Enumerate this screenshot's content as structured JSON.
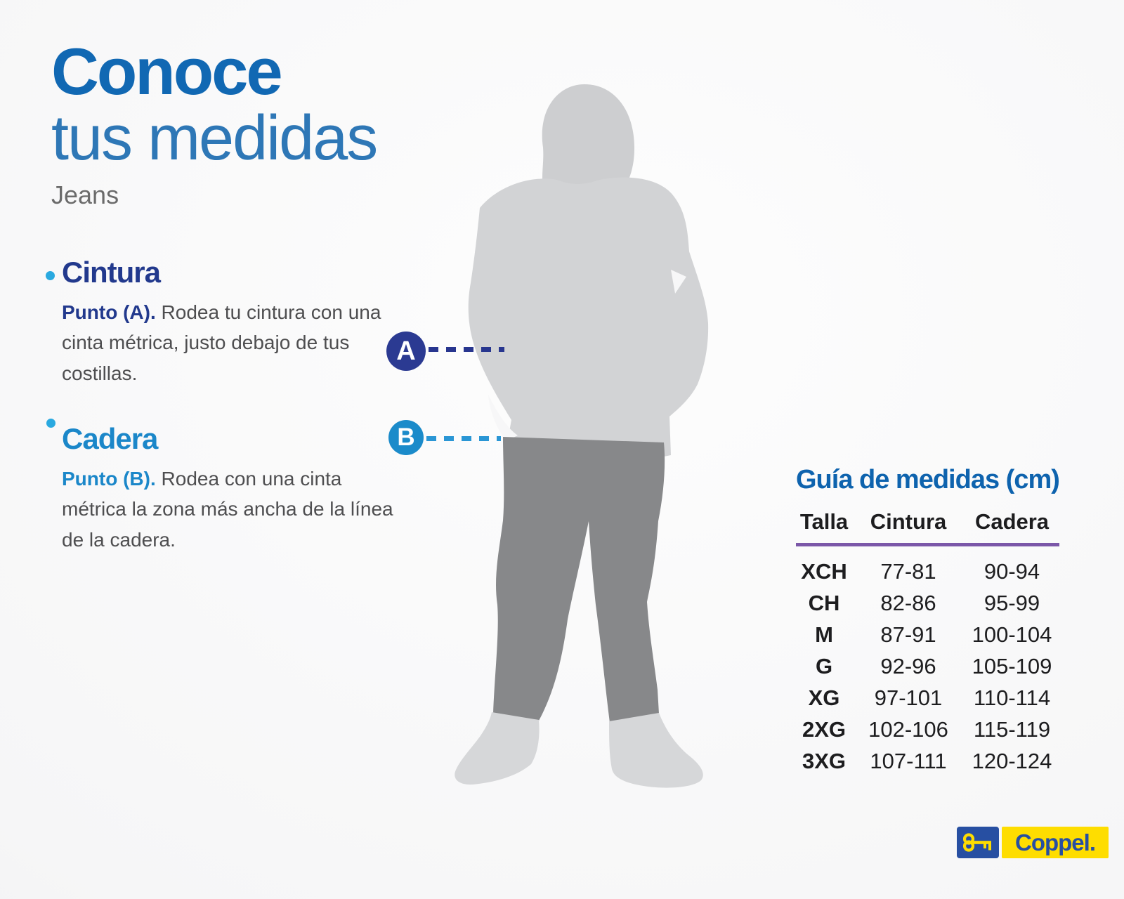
{
  "header": {
    "title_line1": "Conoce",
    "title_line2": "tus medidas",
    "subtitle": "Jeans"
  },
  "sections": [
    {
      "heading": "Cintura",
      "marker": "A",
      "point_label": "Punto (A).",
      "text": "  Rodea tu cintura con una cinta métrica, justo debajo de tus costillas."
    },
    {
      "heading": "Cadera",
      "marker": "B",
      "point_label": "Punto (B).",
      "text": " Rodea con una cinta métrica la zona más ancha de la línea de la cadera."
    }
  ],
  "size_guide": {
    "title": "Guía de medidas (cm)",
    "columns": [
      "Talla",
      "Cintura",
      "Cadera"
    ],
    "rows": [
      {
        "talla": "XCH",
        "cintura": "77-81",
        "cadera": "90-94"
      },
      {
        "talla": "CH",
        "cintura": "82-86",
        "cadera": "95-99"
      },
      {
        "talla": "M",
        "cintura": "87-91",
        "cadera": "100-104"
      },
      {
        "talla": "G",
        "cintura": "92-96",
        "cadera": "105-109"
      },
      {
        "talla": "XG",
        "cintura": "97-101",
        "cadera": "110-114"
      },
      {
        "talla": "2XG",
        "cintura": "102-106",
        "cadera": "115-119"
      },
      {
        "talla": "3XG",
        "cintura": "107-111",
        "cadera": "120-124"
      }
    ]
  },
  "brand": {
    "name": "Coppel."
  },
  "colors": {
    "title_blue": "#1168b3",
    "title_light_blue": "#2e77b6",
    "subtitle_gray": "#6b6b6b",
    "navy": "#22398d",
    "bright_blue": "#1b87c9",
    "bullet_blue": "#2aa9e0",
    "text_gray": "#4e4e50",
    "guide_blue": "#0e63ae",
    "table_black": "#1d1d1f",
    "purple": "#7b57a8",
    "brand_blue": "#274fa2",
    "brand_yellow": "#fedd00",
    "figure_light": "#d2d3d5",
    "figure_dark": "#87888a",
    "shoe_gray": "#d6d7d9",
    "circle_a": "#2b3a92",
    "circle_b": "#1b8bca"
  }
}
